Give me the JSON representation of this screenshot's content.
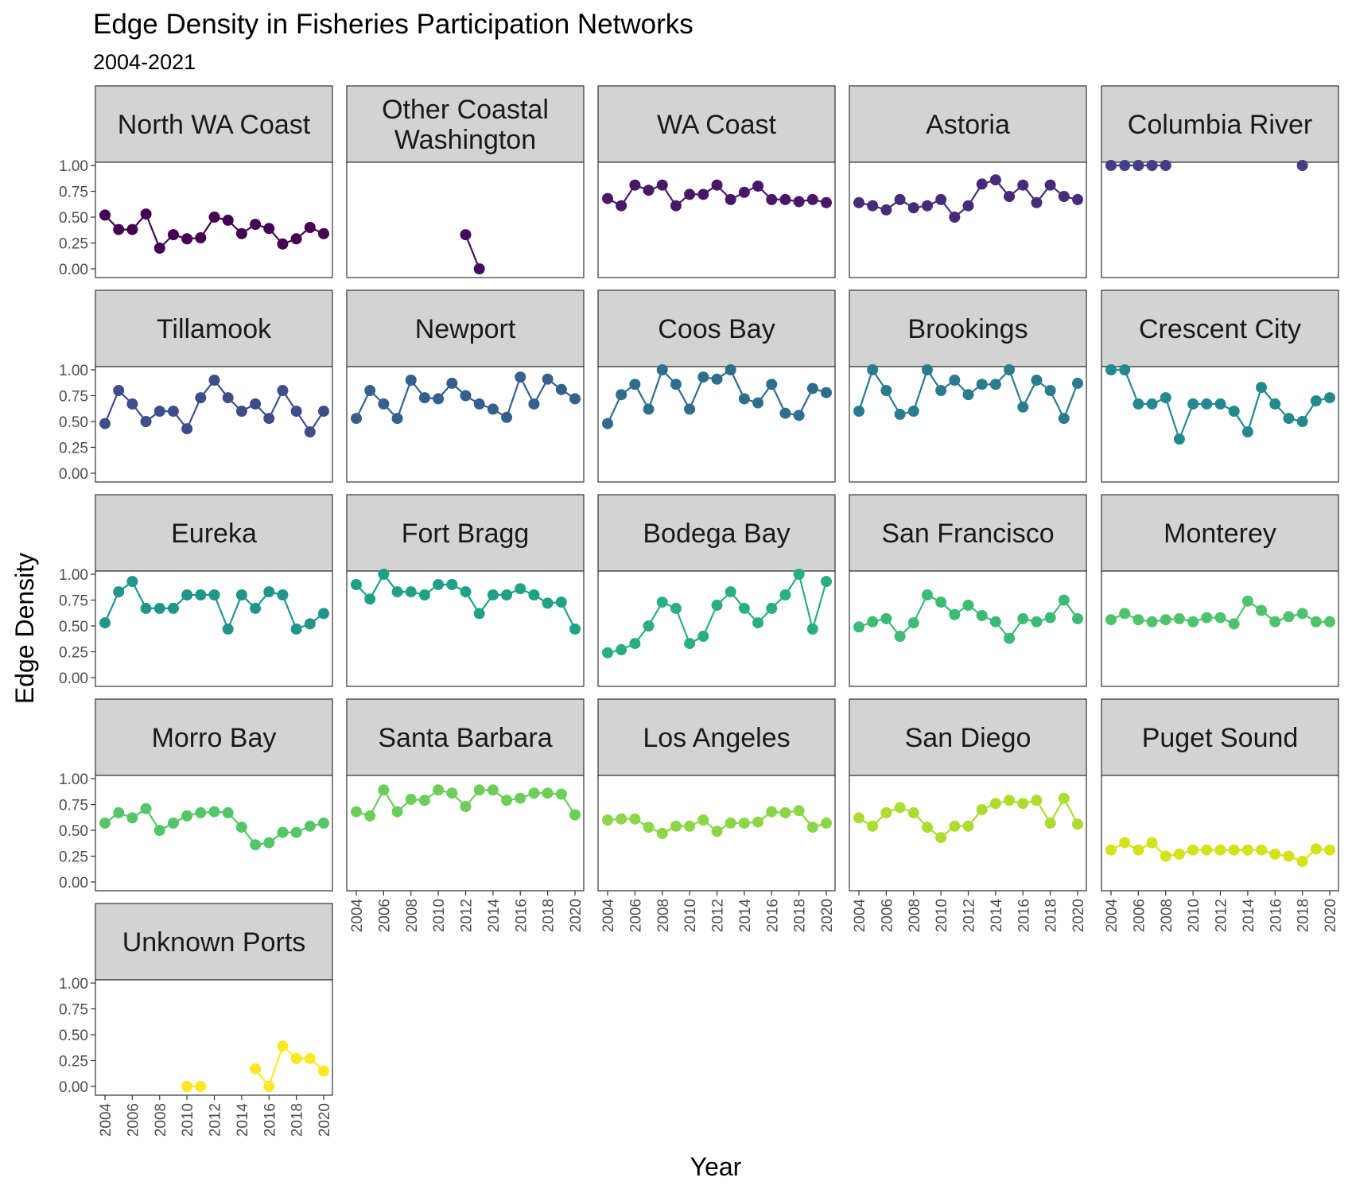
{
  "chart_data": {
    "type": "line",
    "title": "Edge Density in Fisheries Participation Networks",
    "subtitle": "2004-2021",
    "xlabel": "Year",
    "ylabel": "Edge Density",
    "ylim": [
      0,
      1
    ],
    "yticks": [
      "0.00",
      "0.25",
      "0.50",
      "0.75",
      "1.00"
    ],
    "xticks": [
      "2004",
      "2006",
      "2008",
      "2010",
      "2012",
      "2014",
      "2016",
      "2018",
      "2020"
    ],
    "xlim": [
      2004,
      2020
    ],
    "grid": false,
    "legend": "none",
    "layout": "facet_wrap 5 columns",
    "panels": [
      {
        "name": "North WA Coast",
        "color": "#440154",
        "x": [
          2004,
          2005,
          2006,
          2007,
          2008,
          2009,
          2010,
          2011,
          2012,
          2013,
          2014,
          2015,
          2016,
          2017,
          2018,
          2019,
          2020
        ],
        "y": [
          0.52,
          0.38,
          0.38,
          0.53,
          0.2,
          0.33,
          0.29,
          0.3,
          0.5,
          0.47,
          0.34,
          0.43,
          0.39,
          0.24,
          0.29,
          0.4,
          0.34
        ]
      },
      {
        "name": "Other Coastal\nWashington",
        "color": "#460B5E",
        "x": [
          2012,
          2013
        ],
        "y": [
          0.33,
          0.0
        ]
      },
      {
        "name": "WA Coast",
        "color": "#481769",
        "x": [
          2004,
          2005,
          2006,
          2007,
          2008,
          2009,
          2010,
          2011,
          2012,
          2013,
          2014,
          2015,
          2016,
          2017,
          2018,
          2019,
          2020
        ],
        "y": [
          0.68,
          0.61,
          0.81,
          0.76,
          0.81,
          0.61,
          0.72,
          0.72,
          0.81,
          0.67,
          0.74,
          0.8,
          0.67,
          0.67,
          0.65,
          0.67,
          0.64
        ]
      },
      {
        "name": "Astoria",
        "color": "#472A7A",
        "x": [
          2004,
          2005,
          2006,
          2007,
          2008,
          2009,
          2010,
          2011,
          2012,
          2013,
          2014,
          2015,
          2016,
          2017,
          2018,
          2019,
          2020
        ],
        "y": [
          0.64,
          0.61,
          0.57,
          0.67,
          0.59,
          0.61,
          0.67,
          0.5,
          0.61,
          0.82,
          0.86,
          0.7,
          0.81,
          0.64,
          0.81,
          0.7,
          0.67
        ]
      },
      {
        "name": "Columbia River",
        "color": "#433E85",
        "x": [
          2004,
          2005,
          2006,
          2007,
          2008,
          2018
        ],
        "y": [
          1.0,
          1.0,
          1.0,
          1.0,
          1.0,
          1.0
        ]
      },
      {
        "name": "Tillamook",
        "color": "#3D4E8A",
        "x": [
          2004,
          2005,
          2006,
          2007,
          2008,
          2009,
          2010,
          2011,
          2012,
          2013,
          2014,
          2015,
          2016,
          2017,
          2018,
          2019,
          2020
        ],
        "y": [
          0.48,
          0.8,
          0.67,
          0.5,
          0.6,
          0.6,
          0.43,
          0.73,
          0.9,
          0.73,
          0.6,
          0.67,
          0.53,
          0.8,
          0.6,
          0.4,
          0.6
        ]
      },
      {
        "name": "Newport",
        "color": "#355F8D",
        "x": [
          2004,
          2005,
          2006,
          2007,
          2008,
          2009,
          2010,
          2011,
          2012,
          2013,
          2014,
          2015,
          2016,
          2017,
          2018,
          2019,
          2020
        ],
        "y": [
          0.53,
          0.8,
          0.67,
          0.53,
          0.9,
          0.73,
          0.72,
          0.87,
          0.75,
          0.67,
          0.62,
          0.54,
          0.93,
          0.67,
          0.91,
          0.81,
          0.72
        ]
      },
      {
        "name": "Coos Bay",
        "color": "#2E6D8E",
        "x": [
          2004,
          2005,
          2006,
          2007,
          2008,
          2009,
          2010,
          2011,
          2012,
          2013,
          2014,
          2015,
          2016,
          2017,
          2018,
          2019,
          2020
        ],
        "y": [
          0.48,
          0.76,
          0.86,
          0.62,
          1.0,
          0.86,
          0.62,
          0.93,
          0.91,
          1.0,
          0.72,
          0.68,
          0.86,
          0.58,
          0.56,
          0.82,
          0.78
        ]
      },
      {
        "name": "Brookings",
        "color": "#297B8E",
        "x": [
          2004,
          2005,
          2006,
          2007,
          2008,
          2009,
          2010,
          2011,
          2012,
          2013,
          2014,
          2015,
          2016,
          2017,
          2018,
          2019,
          2020
        ],
        "y": [
          0.6,
          1.0,
          0.8,
          0.57,
          0.6,
          1.0,
          0.8,
          0.9,
          0.76,
          0.86,
          0.86,
          1.0,
          0.64,
          0.9,
          0.8,
          0.53,
          0.87
        ]
      },
      {
        "name": "Crescent City",
        "color": "#23898E",
        "x": [
          2004,
          2005,
          2006,
          2007,
          2008,
          2009,
          2010,
          2011,
          2012,
          2013,
          2014,
          2015,
          2016,
          2017,
          2018,
          2019,
          2020
        ],
        "y": [
          1.0,
          1.0,
          0.67,
          0.67,
          0.73,
          0.33,
          0.67,
          0.67,
          0.67,
          0.6,
          0.4,
          0.83,
          0.67,
          0.53,
          0.5,
          0.7,
          0.73
        ]
      },
      {
        "name": "Eureka",
        "color": "#1F958B",
        "x": [
          2004,
          2005,
          2006,
          2007,
          2008,
          2009,
          2010,
          2011,
          2012,
          2013,
          2014,
          2015,
          2016,
          2017,
          2018,
          2019,
          2020
        ],
        "y": [
          0.53,
          0.83,
          0.93,
          0.67,
          0.67,
          0.67,
          0.8,
          0.8,
          0.8,
          0.47,
          0.8,
          0.67,
          0.83,
          0.8,
          0.47,
          0.52,
          0.62
        ]
      },
      {
        "name": "Fort Bragg",
        "color": "#1FA187",
        "x": [
          2004,
          2005,
          2006,
          2007,
          2008,
          2009,
          2010,
          2011,
          2012,
          2013,
          2014,
          2015,
          2016,
          2017,
          2018,
          2019,
          2020
        ],
        "y": [
          0.9,
          0.76,
          1.0,
          0.83,
          0.83,
          0.8,
          0.9,
          0.9,
          0.83,
          0.62,
          0.8,
          0.8,
          0.86,
          0.8,
          0.72,
          0.73,
          0.47
        ]
      },
      {
        "name": "Bodega Bay",
        "color": "#29AF7F",
        "x": [
          2004,
          2005,
          2006,
          2007,
          2008,
          2009,
          2010,
          2011,
          2012,
          2013,
          2014,
          2015,
          2016,
          2017,
          2018,
          2019,
          2020
        ],
        "y": [
          0.24,
          0.27,
          0.33,
          0.5,
          0.73,
          0.67,
          0.33,
          0.4,
          0.7,
          0.83,
          0.67,
          0.53,
          0.67,
          0.8,
          1.0,
          0.47,
          0.93
        ]
      },
      {
        "name": "San Francisco",
        "color": "#3CBB75",
        "x": [
          2004,
          2005,
          2006,
          2007,
          2008,
          2009,
          2010,
          2011,
          2012,
          2013,
          2014,
          2015,
          2016,
          2017,
          2018,
          2019,
          2020
        ],
        "y": [
          0.49,
          0.54,
          0.57,
          0.4,
          0.53,
          0.8,
          0.73,
          0.61,
          0.7,
          0.6,
          0.54,
          0.38,
          0.57,
          0.54,
          0.58,
          0.75,
          0.57
        ]
      },
      {
        "name": "Monterey",
        "color": "#4EC36B",
        "x": [
          2004,
          2005,
          2006,
          2007,
          2008,
          2009,
          2010,
          2011,
          2012,
          2013,
          2014,
          2015,
          2016,
          2017,
          2018,
          2019,
          2020
        ],
        "y": [
          0.56,
          0.62,
          0.56,
          0.54,
          0.56,
          0.57,
          0.54,
          0.58,
          0.58,
          0.52,
          0.74,
          0.65,
          0.54,
          0.59,
          0.62,
          0.54,
          0.54
        ]
      },
      {
        "name": "Morro Bay",
        "color": "#55C667",
        "x": [
          2004,
          2005,
          2006,
          2007,
          2008,
          2009,
          2010,
          2011,
          2012,
          2013,
          2014,
          2015,
          2016,
          2017,
          2018,
          2019,
          2020
        ],
        "y": [
          0.57,
          0.67,
          0.62,
          0.71,
          0.5,
          0.57,
          0.64,
          0.67,
          0.68,
          0.67,
          0.53,
          0.36,
          0.38,
          0.48,
          0.48,
          0.54,
          0.57
        ]
      },
      {
        "name": "Santa Barbara",
        "color": "#6CCD5A",
        "x": [
          2004,
          2005,
          2006,
          2007,
          2008,
          2009,
          2010,
          2011,
          2012,
          2013,
          2014,
          2015,
          2016,
          2017,
          2018,
          2019,
          2020
        ],
        "y": [
          0.68,
          0.64,
          0.89,
          0.68,
          0.8,
          0.79,
          0.89,
          0.86,
          0.73,
          0.89,
          0.89,
          0.79,
          0.81,
          0.86,
          0.86,
          0.85,
          0.65
        ]
      },
      {
        "name": "Los Angeles",
        "color": "#8BD646",
        "x": [
          2004,
          2005,
          2006,
          2007,
          2008,
          2009,
          2010,
          2011,
          2012,
          2013,
          2014,
          2015,
          2016,
          2017,
          2018,
          2019,
          2020
        ],
        "y": [
          0.6,
          0.61,
          0.61,
          0.53,
          0.47,
          0.54,
          0.54,
          0.6,
          0.49,
          0.57,
          0.57,
          0.58,
          0.68,
          0.67,
          0.69,
          0.53,
          0.57
        ]
      },
      {
        "name": "San Diego",
        "color": "#ADDC30",
        "x": [
          2004,
          2005,
          2006,
          2007,
          2008,
          2009,
          2010,
          2011,
          2012,
          2013,
          2014,
          2015,
          2016,
          2017,
          2018,
          2019,
          2020
        ],
        "y": [
          0.62,
          0.54,
          0.67,
          0.72,
          0.67,
          0.53,
          0.43,
          0.54,
          0.54,
          0.7,
          0.76,
          0.79,
          0.76,
          0.79,
          0.57,
          0.81,
          0.56
        ]
      },
      {
        "name": "Puget Sound",
        "color": "#D2E21B",
        "x": [
          2004,
          2005,
          2006,
          2007,
          2008,
          2009,
          2010,
          2011,
          2012,
          2013,
          2014,
          2015,
          2016,
          2017,
          2018,
          2019,
          2020
        ],
        "y": [
          0.31,
          0.38,
          0.31,
          0.38,
          0.25,
          0.27,
          0.31,
          0.31,
          0.31,
          0.31,
          0.31,
          0.31,
          0.27,
          0.25,
          0.2,
          0.32,
          0.31
        ]
      },
      {
        "name": "Unknown Ports",
        "color": "#FDE725",
        "x": [
          2010,
          2011,
          2015,
          2016,
          2017,
          2018,
          2019,
          2020
        ],
        "y": [
          0.0,
          0.0,
          0.17,
          0.0,
          0.39,
          0.27,
          0.27,
          0.15
        ]
      }
    ]
  }
}
